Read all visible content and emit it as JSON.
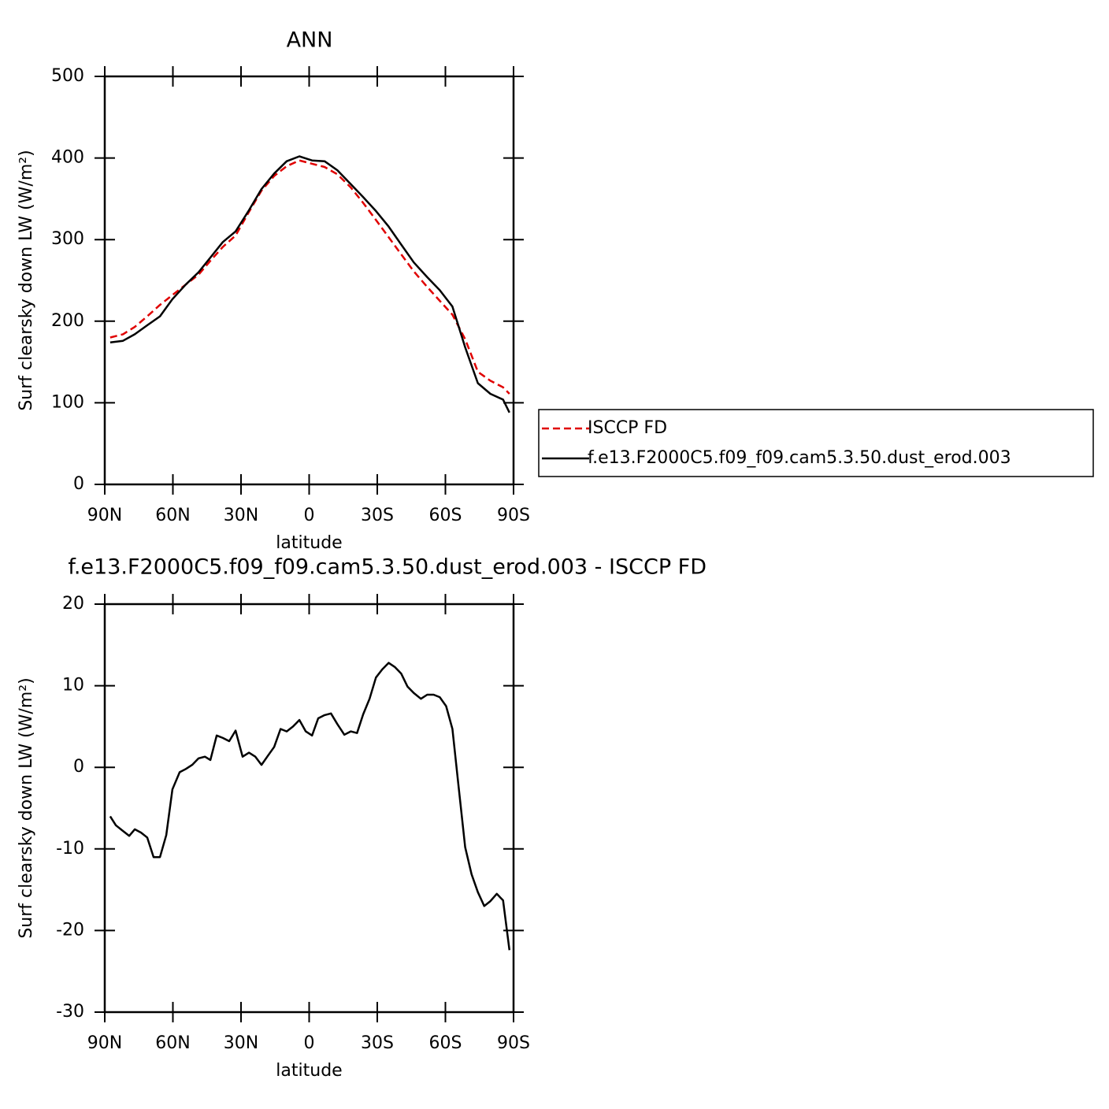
{
  "chart_data": [
    {
      "type": "line",
      "title": "ANN",
      "x_label": "latitude",
      "y_label": "Surf clearsky down LW (W/m²)",
      "xlim": [
        90,
        -90
      ],
      "xticks": [
        {
          "value": 90,
          "label": "90N"
        },
        {
          "value": 60,
          "label": "60N"
        },
        {
          "value": 30,
          "label": "30N"
        },
        0,
        {
          "value": -30,
          "label": "30S"
        },
        {
          "value": -60,
          "label": "60S"
        },
        {
          "value": -90,
          "label": "90S"
        }
      ],
      "ylim": [
        0,
        500
      ],
      "yticks": [
        0,
        100,
        200,
        300,
        400,
        500
      ],
      "legend": "right",
      "x": [
        87.6,
        82.0,
        76.8,
        71.3,
        65.7,
        60.2,
        54.3,
        48.7,
        43.5,
        38.0,
        32.4,
        26.5,
        21.0,
        15.4,
        9.9,
        4.3,
        -1.3,
        -6.8,
        -12.4,
        -18.3,
        -23.8,
        -29.4,
        -35.0,
        -40.5,
        -46.1,
        -52.0,
        -57.5,
        -63.1,
        -68.7,
        -74.3,
        -79.8,
        -85.4,
        -88.2
      ],
      "series": [
        {
          "name": "ISCCP FD",
          "color": "#e00000",
          "dashed": true,
          "values": [
            180,
            184,
            193,
            206,
            220,
            232,
            245,
            257,
            274,
            291,
            305,
            334,
            360,
            378,
            390,
            397,
            393,
            389,
            380,
            364,
            345,
            324,
            303,
            282,
            261,
            242,
            225,
            208,
            178,
            138,
            127,
            119,
            111
          ]
        },
        {
          "name": "f.e13.F2000C5.f09_f09.cam5.3.50.dust_erod.003",
          "color": "#000000",
          "dashed": false,
          "values": [
            174,
            176,
            184,
            195,
            206,
            227,
            245,
            260,
            278,
            297,
            310,
            336,
            362,
            381,
            396,
            402,
            397,
            396,
            385,
            368,
            352,
            335,
            316,
            294,
            272,
            254,
            238,
            218,
            168,
            124,
            111,
            104,
            88
          ]
        }
      ]
    },
    {
      "type": "line",
      "title": "f.e13.F2000C5.f09_f09.cam5.3.50.dust_erod.003 - ISCCP FD",
      "x_label": "latitude",
      "y_label": "Surf clearsky down LW (W/m²)",
      "xlim": [
        90,
        -90
      ],
      "xticks": [
        {
          "value": 90,
          "label": "90N"
        },
        {
          "value": 60,
          "label": "60N"
        },
        {
          "value": 30,
          "label": "30N"
        },
        0,
        {
          "value": -30,
          "label": "30S"
        },
        {
          "value": -60,
          "label": "60S"
        },
        {
          "value": -90,
          "label": "90S"
        }
      ],
      "ylim": [
        -30,
        20
      ],
      "yticks": [
        -30,
        -20,
        -10,
        0,
        10,
        20
      ],
      "color": "#000000",
      "x": [
        87.6,
        85.1,
        82.0,
        79.2,
        76.8,
        74.0,
        71.3,
        68.5,
        65.7,
        62.9,
        60.2,
        57.0,
        54.3,
        51.5,
        48.7,
        45.9,
        43.5,
        40.7,
        38.0,
        35.2,
        32.4,
        29.3,
        26.5,
        23.7,
        21.0,
        18.2,
        15.4,
        12.6,
        9.9,
        7.1,
        4.3,
        1.5,
        -1.3,
        -4.0,
        -6.8,
        -9.6,
        -12.4,
        -15.5,
        -18.3,
        -21.1,
        -23.8,
        -26.6,
        -29.4,
        -32.2,
        -35.0,
        -37.7,
        -40.5,
        -43.3,
        -46.1,
        -49.2,
        -52.0,
        -54.8,
        -57.5,
        -60.3,
        -63.1,
        -65.9,
        -68.7,
        -71.5,
        -74.3,
        -77.1,
        -79.8,
        -82.6,
        -85.4,
        -88.2
      ],
      "values": [
        -6.0,
        -7.1,
        -7.8,
        -8.4,
        -7.6,
        -8.0,
        -8.6,
        -11.0,
        -11.0,
        -8.3,
        -2.7,
        -0.6,
        -0.2,
        0.3,
        1.1,
        1.3,
        0.9,
        3.9,
        3.6,
        3.2,
        4.5,
        1.3,
        1.8,
        1.3,
        0.3,
        1.4,
        2.5,
        4.7,
        4.4,
        5.0,
        5.8,
        4.4,
        3.9,
        6.0,
        6.4,
        6.6,
        5.3,
        4.0,
        4.4,
        4.2,
        6.5,
        8.4,
        11.0,
        12.0,
        12.8,
        12.3,
        11.5,
        9.9,
        9.1,
        8.4,
        8.9,
        8.9,
        8.6,
        7.5,
        4.7,
        -2.6,
        -9.8,
        -13.1,
        -15.3,
        -17.0,
        -16.4,
        -15.5,
        -16.3,
        -22.4
      ]
    }
  ]
}
